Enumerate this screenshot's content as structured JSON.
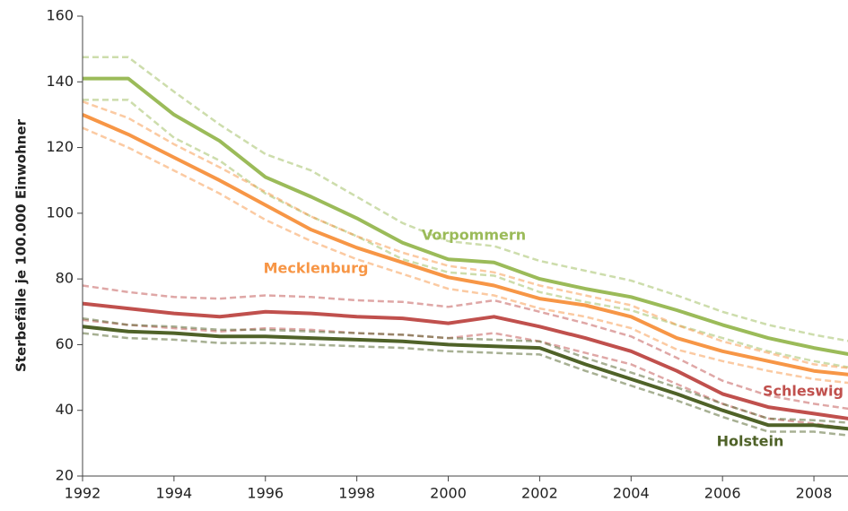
{
  "chart_data": {
    "type": "line",
    "y_label": "Sterbefälle je 100.000 Einwohner",
    "x": [
      1992,
      1993,
      1994,
      1995,
      1996,
      1997,
      1998,
      1999,
      2000,
      2001,
      2002,
      2003,
      2004,
      2005,
      2006,
      2007,
      2008,
      2009
    ],
    "xlim": [
      1992,
      2008.7
    ],
    "xticks": [
      1992,
      1994,
      1996,
      1998,
      2000,
      2002,
      2004,
      2006,
      2008
    ],
    "ylim": [
      20,
      160
    ],
    "yticks": [
      20,
      40,
      60,
      80,
      100,
      120,
      140,
      160
    ],
    "series": [
      {
        "name": "Vorpommern",
        "color": "#9bbb59",
        "values": [
          141,
          141,
          130,
          122,
          111,
          105,
          98.5,
          91,
          86,
          85,
          80,
          77,
          74.5,
          70.5,
          66,
          62,
          59,
          56.5
        ],
        "upper": [
          147.5,
          147.5,
          137,
          127,
          118,
          113,
          105,
          97,
          91.5,
          90,
          85.5,
          82.5,
          79.5,
          75,
          70,
          66,
          63,
          60.5
        ],
        "lower": [
          134.5,
          134.5,
          123,
          116,
          106,
          99,
          93,
          86,
          82,
          81,
          76,
          73,
          70.5,
          66,
          62,
          58,
          55,
          52.5
        ]
      },
      {
        "name": "Mecklenburg",
        "color": "#f79646",
        "values": [
          130,
          124,
          117,
          110,
          102.5,
          95,
          89.5,
          85,
          80.5,
          78,
          74,
          72,
          68.5,
          62,
          58,
          55,
          52,
          50.5
        ],
        "upper": [
          134,
          129,
          121,
          114,
          106.5,
          99,
          93,
          88,
          84,
          82,
          78,
          75,
          72,
          66,
          61,
          57.5,
          54,
          52.5
        ],
        "lower": [
          126,
          120,
          113,
          106,
          98,
          91.5,
          86,
          81.5,
          77,
          75,
          71,
          68.5,
          65,
          58.5,
          55,
          52,
          49.5,
          48
        ]
      },
      {
        "name": "Schleswig",
        "color": "#c0504d",
        "values": [
          72.5,
          71,
          69.5,
          68.5,
          70,
          69.5,
          68.5,
          68,
          66.5,
          68.5,
          65.5,
          62,
          58,
          52,
          45,
          41,
          39,
          37
        ],
        "upper": [
          78,
          76,
          74.5,
          74,
          75,
          74.5,
          73.5,
          73,
          71.5,
          73.5,
          70,
          66.5,
          62.5,
          56,
          49,
          44.5,
          42,
          40
        ],
        "lower": [
          67.5,
          66,
          65,
          64,
          65,
          64.5,
          63.5,
          63,
          62,
          63.5,
          61,
          57.5,
          54,
          48,
          42,
          37.5,
          36,
          34
        ]
      },
      {
        "name": "Holstein",
        "color": "#4f6228",
        "values": [
          65.5,
          64,
          63.5,
          62.5,
          62.5,
          62,
          61.5,
          61,
          60,
          59.5,
          59,
          54,
          49.5,
          45,
          40,
          35.5,
          35.5,
          34
        ],
        "upper": [
          68,
          66,
          65.5,
          64.5,
          64.5,
          64,
          63.5,
          63,
          62,
          61.5,
          61,
          56,
          51.5,
          47,
          42,
          37.5,
          37,
          36
        ],
        "lower": [
          63.5,
          62,
          61.5,
          60.5,
          60.5,
          60,
          59.5,
          59,
          58,
          57.5,
          57,
          52,
          47.5,
          43,
          38,
          33.5,
          33.5,
          32
        ]
      }
    ]
  }
}
